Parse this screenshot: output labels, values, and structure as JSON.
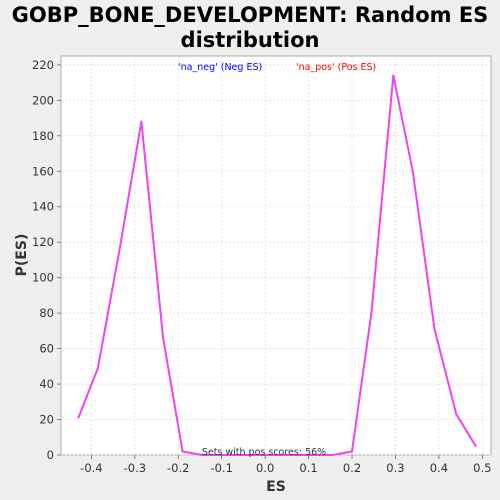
{
  "chart_data": {
    "type": "line",
    "title_line1": "GOBP_BONE_DEVELOPMENT: Random ES",
    "title_line2": "distribution",
    "xlabel": "ES",
    "ylabel": "P(ES)",
    "xlim": [
      -0.47,
      0.52
    ],
    "ylim": [
      0,
      225
    ],
    "x_ticks": [
      -0.4,
      -0.3,
      -0.2,
      -0.1,
      0.0,
      0.1,
      0.2,
      0.3,
      0.4,
      0.5
    ],
    "x_tick_labels": [
      "-0.4",
      "-0.3",
      "-0.2",
      "-0.1",
      "0.0",
      "0.1",
      "0.2",
      "0.3",
      "0.4",
      "0.5"
    ],
    "y_ticks": [
      0,
      20,
      40,
      60,
      80,
      100,
      120,
      140,
      160,
      180,
      200,
      220
    ],
    "y_tick_labels": [
      "0",
      "20",
      "40",
      "60",
      "80",
      "100",
      "120",
      "140",
      "160",
      "180",
      "200",
      "220"
    ],
    "grid": true,
    "legend": [
      {
        "name": "'na_neg' (Neg ES)",
        "color": "#0000ff"
      },
      {
        "name": "'na_pos' (Pos ES)",
        "color": "#ff0000"
      }
    ],
    "legend_placement": "top",
    "annotation": "Sets with pos scores: 56%",
    "series": [
      {
        "color": "#ee44ee",
        "x": [
          -0.43,
          -0.385,
          -0.335,
          -0.285,
          -0.235,
          -0.19,
          -0.145,
          -0.095,
          -0.045,
          0.005,
          0.055,
          0.105,
          0.155,
          0.2,
          0.245,
          0.295,
          0.34,
          0.39,
          0.44,
          0.485
        ],
        "y": [
          21,
          49,
          116,
          188,
          66,
          2,
          0,
          0,
          0,
          0,
          0,
          0,
          0,
          2,
          81,
          214,
          160,
          71,
          23,
          5
        ]
      }
    ]
  }
}
